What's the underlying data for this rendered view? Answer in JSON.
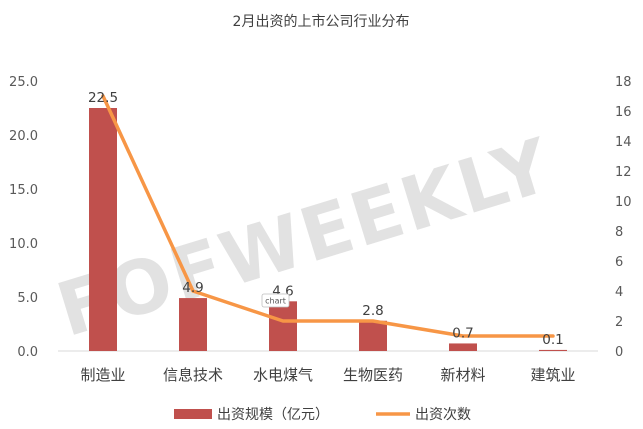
{
  "chart_data": {
    "type": "bar",
    "title": "2月出资的上市公司行业分布",
    "categories": [
      "制造业",
      "信息技术",
      "水电煤气",
      "生物医药",
      "新材料",
      "建筑业"
    ],
    "series": [
      {
        "name": "出资规模（亿元）",
        "type": "bar",
        "axis": "left",
        "color": "#c0504d",
        "values": [
          22.5,
          4.9,
          4.6,
          2.8,
          0.7,
          0.1
        ]
      },
      {
        "name": "出资次数",
        "type": "line",
        "axis": "right",
        "color": "#f79646",
        "values": [
          17,
          4,
          2,
          2,
          1,
          1
        ]
      }
    ],
    "data_labels": [
      "22.5",
      "4.9",
      "4.6",
      "2.8",
      "0.7",
      "0.1"
    ],
    "y_left": {
      "ylim": [
        0,
        25
      ],
      "ticks": [
        "0.0",
        "5.0",
        "10.0",
        "15.0",
        "20.0",
        "25.0"
      ]
    },
    "y_right": {
      "ylim": [
        0,
        18
      ],
      "ticks": [
        "0",
        "2",
        "4",
        "6",
        "8",
        "10",
        "12",
        "14",
        "16",
        "18"
      ]
    },
    "grid": false,
    "legend": "bottom",
    "watermark": "FOFWEEKLY",
    "tag": "chart"
  }
}
